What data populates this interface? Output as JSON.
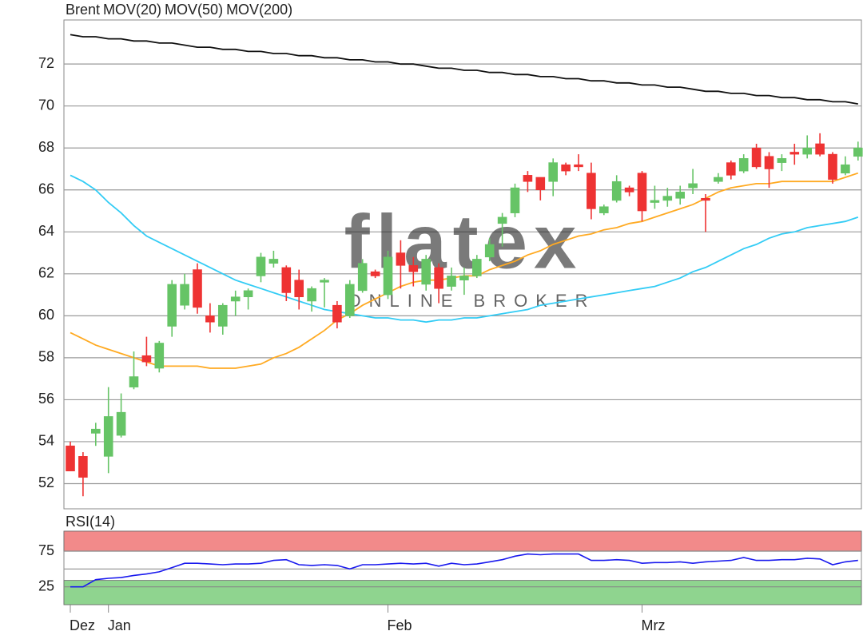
{
  "chart_data": [
    {
      "type": "candlestick",
      "name": "Brent",
      "color": "#ff5533",
      "up_color": "#66c466",
      "down_color": "#ee3333",
      "open": [
        53.8,
        53.3,
        54.4,
        53.3,
        54.3,
        56.6,
        58.1,
        57.5,
        59.5,
        60.5,
        62.2,
        60,
        59.5,
        60.7,
        60.9,
        61.9,
        62.5,
        62.3,
        61.7,
        60.7,
        61.6,
        60.5,
        60,
        61.2,
        62.1,
        61,
        63,
        62.4,
        61.5,
        62.3,
        61.4,
        61.7,
        61.9,
        62.8,
        64.4,
        64.9,
        66.7,
        66.6,
        66.4,
        67.2,
        67.2,
        66.8,
        64.9,
        65.5,
        66.1,
        66.8,
        65.4,
        65.5,
        65.6,
        66.1,
        65.6,
        66.4,
        67.3,
        66.9,
        68,
        67.6,
        67.3,
        67.8,
        67.7,
        68.2,
        67.7,
        66.8,
        67.6
      ],
      "high": [
        54,
        53.5,
        54.9,
        56.6,
        56.3,
        58.3,
        59,
        58.8,
        61.7,
        62,
        62.5,
        60.6,
        60.6,
        61.2,
        61.3,
        63,
        63.1,
        62.4,
        62.2,
        61.4,
        61.8,
        60.7,
        61.7,
        62.7,
        62.2,
        63.1,
        63.6,
        62.8,
        62.9,
        62.5,
        62.3,
        62.3,
        62.9,
        63.7,
        64.9,
        66.3,
        66.9,
        66.6,
        67.5,
        67.3,
        67.7,
        67.3,
        65.3,
        66.7,
        66.2,
        66.9,
        66.2,
        66.1,
        66.2,
        67,
        65.8,
        66.8,
        67.4,
        67.7,
        68.2,
        67.8,
        67.7,
        68.2,
        68.6,
        68.7,
        67.8,
        67.6,
        68.3
      ],
      "low": [
        52.6,
        51.4,
        53.8,
        52.5,
        54.2,
        56.5,
        57.6,
        57.3,
        59,
        60.3,
        60.1,
        59.2,
        59.1,
        60,
        60.3,
        61.6,
        62.3,
        60.7,
        60.3,
        60.2,
        60.4,
        59.4,
        59.9,
        61.1,
        61.8,
        60.8,
        61.3,
        61.4,
        61.2,
        60.6,
        61.2,
        61,
        61.8,
        62.6,
        63.3,
        64.7,
        65.9,
        65.5,
        65.7,
        66.7,
        66.9,
        64.6,
        64.8,
        65.4,
        65.7,
        64.5,
        65.1,
        65.2,
        65.3,
        65.8,
        64,
        66.3,
        66.5,
        66.8,
        67,
        66.1,
        66.9,
        67.2,
        67.5,
        67.6,
        66.3,
        66.7,
        67.4
      ],
      "close": [
        52.6,
        52.3,
        54.6,
        55.2,
        55.4,
        57.1,
        57.8,
        58.7,
        61.5,
        61.5,
        60.4,
        59.7,
        60.5,
        60.9,
        61.2,
        62.8,
        62.7,
        61.1,
        60.9,
        61.3,
        61.7,
        59.7,
        61.5,
        62.5,
        61.9,
        62.8,
        62.4,
        62.1,
        62.7,
        61.3,
        61.9,
        61.9,
        62.7,
        63.4,
        64.7,
        66.1,
        66.4,
        66,
        67.3,
        66.9,
        67.1,
        65.1,
        65.2,
        66.4,
        65.9,
        65,
        65.5,
        65.7,
        65.9,
        66.3,
        65.5,
        66.6,
        66.7,
        67.5,
        67.1,
        67,
        67.5,
        67.7,
        68,
        67.7,
        66.5,
        67.2,
        68
      ],
      "series": [
        {
          "name": "MOV(20)",
          "color": "#ffaa22",
          "values": [
            59.2,
            58.9,
            58.6,
            58.4,
            58.2,
            58.0,
            57.8,
            57.6,
            57.6,
            57.6,
            57.6,
            57.5,
            57.5,
            57.5,
            57.6,
            57.7,
            58.0,
            58.2,
            58.5,
            58.9,
            59.3,
            59.8,
            60.1,
            60.5,
            60.8,
            61.1,
            61.4,
            61.6,
            61.7,
            61.7,
            61.8,
            61.9,
            61.9,
            62.2,
            62.4,
            62.6,
            62.9,
            63.1,
            63.4,
            63.6,
            63.8,
            63.9,
            64.1,
            64.2,
            64.4,
            64.5,
            64.7,
            64.9,
            65.1,
            65.3,
            65.6,
            65.9,
            66.1,
            66.2,
            66.3,
            66.3,
            66.4,
            66.4,
            66.4,
            66.4,
            66.4,
            66.6,
            66.8
          ]
        },
        {
          "name": "MOV(50)",
          "color": "#33ccf5",
          "values": [
            66.7,
            66.4,
            66.0,
            65.4,
            64.9,
            64.3,
            63.8,
            63.5,
            63.2,
            62.9,
            62.6,
            62.3,
            62.0,
            61.7,
            61.5,
            61.3,
            61.1,
            60.9,
            60.7,
            60.5,
            60.3,
            60.2,
            60.1,
            60.0,
            59.9,
            59.9,
            59.8,
            59.8,
            59.7,
            59.8,
            59.8,
            59.9,
            59.9,
            60.0,
            60.1,
            60.2,
            60.3,
            60.5,
            60.6,
            60.7,
            60.8,
            60.9,
            61.0,
            61.1,
            61.2,
            61.3,
            61.4,
            61.6,
            61.8,
            62.1,
            62.3,
            62.6,
            62.9,
            63.2,
            63.4,
            63.7,
            63.9,
            64.0,
            64.2,
            64.3,
            64.4,
            64.5,
            64.7
          ]
        },
        {
          "name": "MOV(200)",
          "color": "#111111",
          "values": [
            73.4,
            73.3,
            73.3,
            73.2,
            73.2,
            73.1,
            73.1,
            73.0,
            73.0,
            72.9,
            72.8,
            72.8,
            72.7,
            72.7,
            72.6,
            72.6,
            72.5,
            72.5,
            72.4,
            72.4,
            72.3,
            72.3,
            72.2,
            72.2,
            72.1,
            72.1,
            72.0,
            72.0,
            71.9,
            71.8,
            71.8,
            71.7,
            71.7,
            71.6,
            71.6,
            71.5,
            71.5,
            71.4,
            71.4,
            71.3,
            71.3,
            71.2,
            71.2,
            71.1,
            71.1,
            71.0,
            71.0,
            70.9,
            70.9,
            70.8,
            70.7,
            70.7,
            70.6,
            70.6,
            70.5,
            70.5,
            70.4,
            70.4,
            70.3,
            70.3,
            70.2,
            70.2,
            70.1
          ]
        }
      ],
      "ylim": [
        50.8,
        74.1
      ],
      "yticks": [
        52,
        54,
        56,
        58,
        60,
        62,
        64,
        66,
        68,
        70,
        72
      ],
      "grid": true,
      "watermark": [
        "flatex",
        "ONLINE BROKER"
      ]
    },
    {
      "type": "line",
      "categories": [
        "Dez",
        null,
        null,
        "Jan",
        null,
        null,
        null,
        null,
        null,
        null,
        null,
        null,
        null,
        null,
        null,
        null,
        null,
        null,
        null,
        null,
        null,
        null,
        null,
        null,
        null,
        "Feb",
        null,
        null,
        null,
        null,
        null,
        null,
        null,
        null,
        null,
        null,
        null,
        null,
        null,
        null,
        null,
        null,
        null,
        null,
        null,
        "Mrz",
        null,
        null,
        null,
        null,
        null,
        null,
        null,
        null,
        null,
        null,
        null,
        null,
        null,
        null,
        null,
        null,
        null
      ],
      "series": [
        {
          "name": "RSI(14)",
          "color": "#1a1aee",
          "values": [
            25,
            25,
            35,
            37,
            38,
            41,
            43,
            46,
            52,
            58,
            58,
            57,
            56,
            57,
            57,
            58,
            62,
            63,
            56,
            55,
            56,
            55,
            50,
            56,
            56,
            57,
            58,
            57,
            58,
            54,
            58,
            56,
            57,
            60,
            63,
            68,
            71,
            70,
            71,
            71,
            71,
            62,
            62,
            63,
            62,
            58,
            59,
            59,
            60,
            58,
            60,
            61,
            62,
            66,
            62,
            62,
            63,
            63,
            65,
            64,
            56,
            60,
            62
          ]
        }
      ],
      "ylim": [
        0,
        103
      ],
      "yticks": [
        25,
        75
      ],
      "hlines": [
        50
      ],
      "bands": [
        {
          "from": 75,
          "to": 103,
          "color": "#f28a8a"
        },
        {
          "from": 0,
          "to": 34,
          "color": "#8fd48f"
        }
      ]
    }
  ]
}
